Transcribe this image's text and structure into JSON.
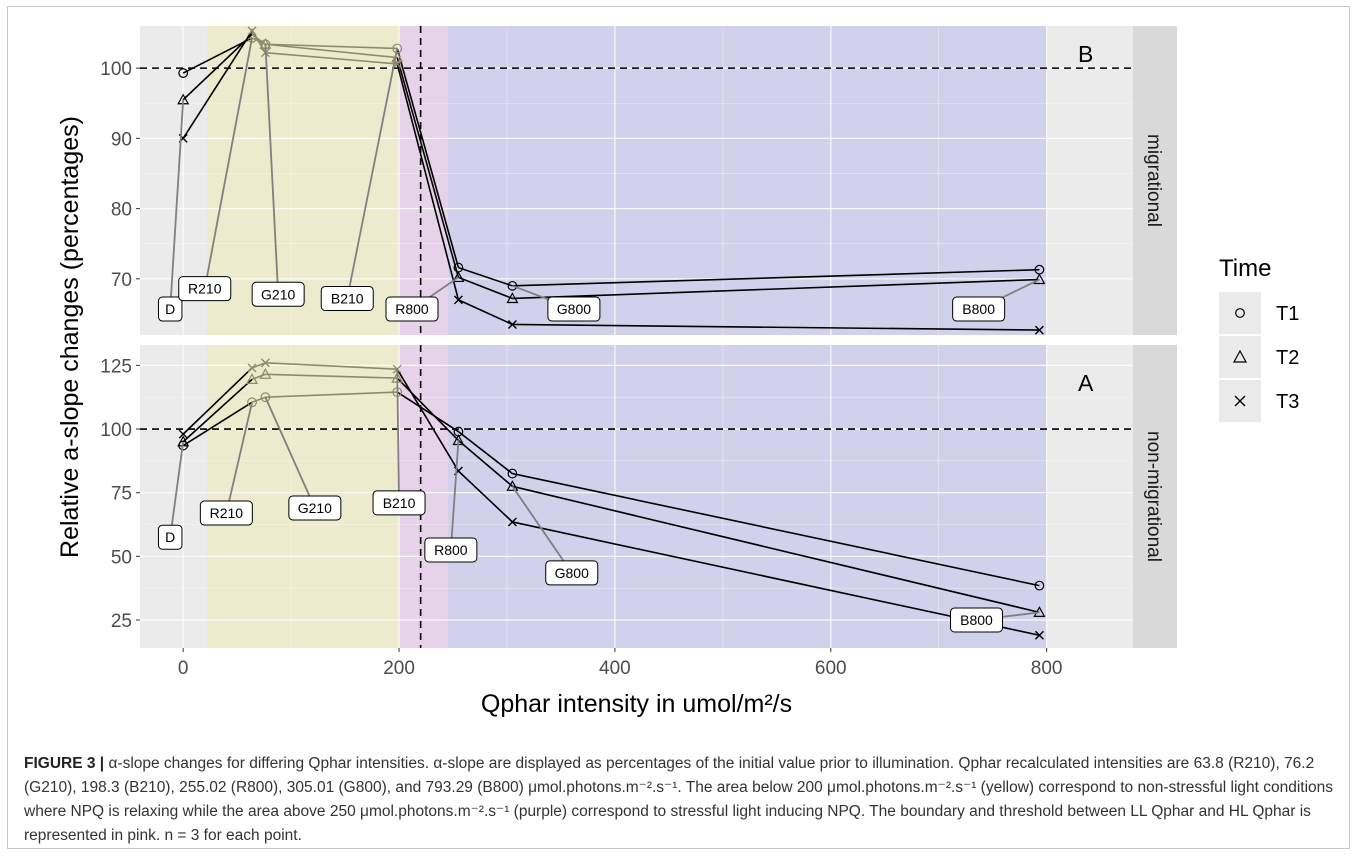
{
  "chart_data": {
    "type": "line",
    "xlabel": "Qphar intensity in umol/m²/s",
    "ylabel": "Relative a-slope changes (percentages)",
    "x_ticks": [
      0,
      200,
      400,
      600,
      800
    ],
    "xlim": [
      -40,
      880
    ],
    "reference_lines": {
      "horizontal_y": 100,
      "vertical_x": 220
    },
    "regions": [
      {
        "label": "yellow",
        "from": 22,
        "to": 200,
        "color": "#ecebce"
      },
      {
        "label": "pink",
        "from": 200,
        "to": 245,
        "color": "#e7d3e9"
      },
      {
        "label": "purple",
        "from": 245,
        "to": 800,
        "color": "#d2d1ec"
      }
    ],
    "legend": {
      "title": "Time",
      "position": "right",
      "entries": [
        {
          "name": "T1",
          "symbol": "circle"
        },
        {
          "name": "T2",
          "symbol": "triangle"
        },
        {
          "name": "T3",
          "symbol": "cross"
        }
      ]
    },
    "panels": [
      {
        "letter": "B",
        "strip": "migrational",
        "ylim": [
          62,
          106
        ],
        "y_ticks": [
          70,
          80,
          90,
          100
        ],
        "series": [
          {
            "name": "T1",
            "x": [
              0,
              63.8,
              76.2,
              198.3,
              255.02,
              305.01,
              793.29
            ],
            "values": [
              99.3,
              104.3,
              103.4,
              102.8,
              71.6,
              69.0,
              71.3
            ]
          },
          {
            "name": "T2",
            "x": [
              0,
              63.8,
              76.2,
              198.3,
              255.02,
              305.01,
              793.29
            ],
            "values": [
              95.5,
              104.8,
              103.4,
              101.5,
              70.2,
              67.2,
              69.9
            ]
          },
          {
            "name": "T3",
            "x": [
              0,
              63.8,
              76.2,
              198.3,
              255.02,
              305.01,
              793.29
            ],
            "values": [
              90.0,
              105.3,
              102.2,
              100.6,
              67.0,
              63.5,
              62.7
            ]
          }
        ],
        "annotations": [
          {
            "label": "D",
            "anchor": [
              0,
              95.5
            ],
            "box": [
              -12,
              65.7
            ]
          },
          {
            "label": "R210",
            "anchor": [
              63.8,
              104.3
            ],
            "box": [
              20,
              68.6
            ]
          },
          {
            "label": "G210",
            "anchor": [
              76.2,
              103.4
            ],
            "box": [
              88,
              67.8
            ]
          },
          {
            "label": "B210",
            "anchor": [
              198.3,
              102.8
            ],
            "box": [
              152,
              67.2
            ]
          },
          {
            "label": "R800",
            "anchor": [
              255.02,
              70.2
            ],
            "box": [
              212,
              65.7
            ]
          },
          {
            "label": "G800",
            "anchor": [
              305.01,
              69.0
            ],
            "box": [
              362,
              65.7
            ]
          },
          {
            "label": "B800",
            "anchor": [
              793.29,
              69.9
            ],
            "box": [
              737,
              65.7
            ]
          }
        ]
      },
      {
        "letter": "A",
        "strip": "non-migrational",
        "ylim": [
          14,
          133
        ],
        "y_ticks": [
          25,
          50,
          75,
          100,
          125
        ],
        "series": [
          {
            "name": "T1",
            "x": [
              0,
              63.8,
              76.2,
              198.3,
              255.02,
              305.01,
              793.29
            ],
            "values": [
              93.5,
              110.5,
              112.5,
              114.5,
              99.0,
              82.5,
              38.5
            ]
          },
          {
            "name": "T2",
            "x": [
              0,
              63.8,
              76.2,
              198.3,
              255.02,
              305.01,
              793.29
            ],
            "values": [
              95.0,
              119.5,
              121.5,
              120.0,
              95.5,
              77.5,
              28.0
            ]
          },
          {
            "name": "T3",
            "x": [
              0,
              63.8,
              76.2,
              198.3,
              255.02,
              305.01,
              793.29
            ],
            "values": [
              98.0,
              124.0,
              126.0,
              123.5,
              83.5,
              63.5,
              19.0
            ]
          }
        ],
        "annotations": [
          {
            "label": "D",
            "anchor": [
              0,
              95.0
            ],
            "box": [
              -12,
              57.5
            ]
          },
          {
            "label": "R210",
            "anchor": [
              63.8,
              110.5
            ],
            "box": [
              40,
              67.0
            ]
          },
          {
            "label": "G210",
            "anchor": [
              76.2,
              112.5
            ],
            "box": [
              122,
              69.0
            ]
          },
          {
            "label": "B210",
            "anchor": [
              198.3,
              123.5
            ],
            "box": [
              200,
              71.0
            ]
          },
          {
            "label": "R800",
            "anchor": [
              255.02,
              95.5
            ],
            "box": [
              248,
              52.5
            ]
          },
          {
            "label": "G800",
            "anchor": [
              305.01,
              77.5
            ],
            "box": [
              360,
              43.5
            ]
          },
          {
            "label": "B800",
            "anchor": [
              793.29,
              28.0
            ],
            "box": [
              735,
              25.0
            ]
          }
        ]
      }
    ]
  },
  "caption": {
    "label": "FIGURE 3 |",
    "text": " α-slope changes for differing Qphar intensities. α-slope are displayed as percentages of the initial value prior to illumination. Qphar recalculated intensities are 63.8 (R210), 76.2 (G210), 198.3 (B210), 255.02 (R800), 305.01 (G800), and 793.29 (B800) μmol.photons.m⁻².s⁻¹. The area below 200 μmol.photons.m⁻².s⁻¹ (yellow) correspond to non-stressful light conditions where NPQ is relaxing while the area above 250 μmol.photons.m⁻².s⁻¹ (purple) correspond to stressful light inducing NPQ. The boundary and threshold between LL Qphar and HL Qphar is represented in pink. n = 3 for each point."
  }
}
